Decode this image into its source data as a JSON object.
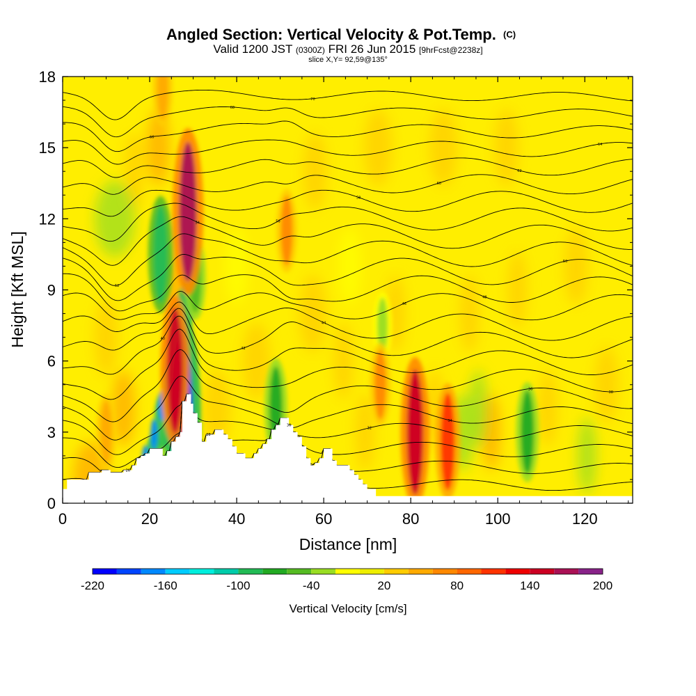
{
  "header": {
    "title": "Angled Section: Vertical Velocity & Pot.Temp.",
    "title_unit": "(C)",
    "valid_prefix": "Valid 1200 JST",
    "valid_utc": "(0300Z)",
    "valid_date": "FRI 26 Jun 2015",
    "forecast": "[9hrFcst@2238z]",
    "slice": "slice X,Y= 92,59@135°"
  },
  "chart_data": {
    "type": "heatmap",
    "xlabel": "Distance [nm]",
    "ylabel": "Height [Kft MSL]",
    "xlim": [
      0,
      131
    ],
    "ylim": [
      0,
      18
    ],
    "x_ticks": [
      0,
      20,
      40,
      60,
      80,
      100,
      120
    ],
    "y_ticks": [
      0,
      3,
      6,
      9,
      12,
      15,
      18
    ],
    "field_unit": "cm/s",
    "colorbar": {
      "label": "Vertical Velocity [cm/s]",
      "tick_labels": [
        "-220",
        "-160",
        "-100",
        "-40",
        "20",
        "80",
        "140",
        "200"
      ],
      "tick_values": [
        -220,
        -160,
        -100,
        -40,
        20,
        80,
        140,
        200
      ],
      "bins": [
        -220,
        -200,
        -180,
        -160,
        -140,
        -120,
        -100,
        -80,
        -60,
        -40,
        -20,
        0,
        20,
        40,
        60,
        80,
        100,
        120,
        140,
        160,
        180,
        200
      ],
      "colors": [
        "#0000ff",
        "#0044ff",
        "#0088ff",
        "#00ccff",
        "#00eedd",
        "#00ccaa",
        "#22bb55",
        "#22aa22",
        "#55bb22",
        "#99dd22",
        "#ffff00",
        "#eeee00",
        "#ffcc00",
        "#ffaa00",
        "#ff8800",
        "#ff6600",
        "#ff3300",
        "#ee0000",
        "#cc0022",
        "#aa1155",
        "#882288",
        "#552288"
      ]
    },
    "updraft_cores": [
      {
        "x": 28.8,
        "z": 12.3,
        "w": 160
      },
      {
        "x": 25.8,
        "z": 5.6,
        "w": 140
      },
      {
        "x": 81.0,
        "z": 3.0,
        "w": 140
      },
      {
        "x": 88.5,
        "z": 2.6,
        "w": 100
      },
      {
        "x": 73.0,
        "z": 5.0,
        "w": 60
      },
      {
        "x": 51.5,
        "z": 11.5,
        "w": 60
      },
      {
        "x": 10.0,
        "z": 3.0,
        "w": 50
      },
      {
        "x": 23.0,
        "z": 17.5,
        "w": 50
      }
    ],
    "downdraft_cores": [
      {
        "x": 27.5,
        "z": 3.5,
        "w": -220
      },
      {
        "x": 22.5,
        "z": 10.5,
        "w": -100
      },
      {
        "x": 49.0,
        "z": 4.0,
        "w": -80
      },
      {
        "x": 106.8,
        "z": 3.0,
        "w": -80
      },
      {
        "x": 30.5,
        "z": 9.5,
        "w": -60
      },
      {
        "x": 73.5,
        "z": 7.5,
        "w": -40
      }
    ],
    "terrain": {
      "x": [
        0,
        1,
        6,
        9,
        11,
        14,
        16,
        17,
        18,
        19,
        20,
        22,
        23,
        24,
        25,
        26,
        27,
        27.5,
        28.5,
        29,
        29.5,
        30,
        31,
        32,
        33,
        34,
        35,
        36,
        37,
        38,
        39,
        40,
        42,
        43,
        44,
        45,
        46,
        47,
        48,
        49,
        50,
        51,
        52,
        53,
        54,
        55,
        56,
        57,
        58,
        59,
        60,
        61,
        62,
        63,
        64,
        65,
        66,
        67,
        68,
        69,
        70,
        72,
        77,
        131
      ],
      "z": [
        0.6,
        1.0,
        1.3,
        1.4,
        1.3,
        1.4,
        1.6,
        1.9,
        2.0,
        2.1,
        2.3,
        2.3,
        2.0,
        2.2,
        2.6,
        2.8,
        3.0,
        4.3,
        4.6,
        4.6,
        4.2,
        3.8,
        3.4,
        2.6,
        2.9,
        2.9,
        3.1,
        3.1,
        2.9,
        2.7,
        2.4,
        2.1,
        1.9,
        1.9,
        2.1,
        2.3,
        2.5,
        2.7,
        3.1,
        3.3,
        3.6,
        3.6,
        3.3,
        3.0,
        2.8,
        2.4,
        1.9,
        1.6,
        1.7,
        1.9,
        2.3,
        2.3,
        1.8,
        1.6,
        1.6,
        1.6,
        1.4,
        1.2,
        1.0,
        0.8,
        0.6,
        0.3,
        0.3,
        0.3
      ]
    },
    "theta_contour_levels": [
      26,
      28,
      30,
      32,
      34,
      36,
      38,
      40,
      42,
      44,
      46,
      48,
      50,
      52,
      54,
      56,
      58,
      60,
      62,
      64,
      66,
      68,
      70
    ]
  }
}
